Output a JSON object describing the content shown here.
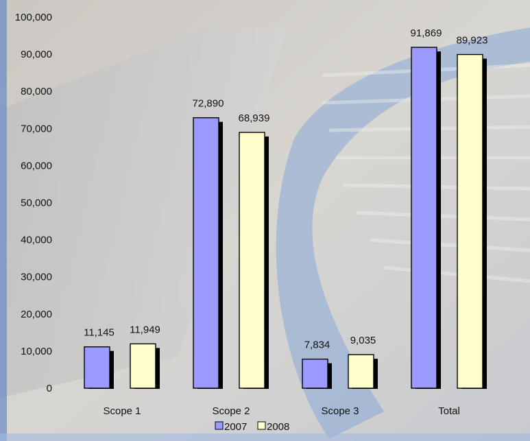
{
  "chart_data": {
    "type": "bar",
    "categories": [
      "Scope 1",
      "Scope 2",
      "Scope 3",
      "Total"
    ],
    "series": [
      {
        "name": "2007",
        "color": "#9A9AFF",
        "values": [
          11145,
          72890,
          7834,
          91869
        ],
        "labels": [
          "11,145",
          "72,890",
          "7,834",
          "91,869"
        ]
      },
      {
        "name": "2008",
        "color": "#FFFFCC",
        "values": [
          11949,
          68939,
          9035,
          89923
        ],
        "labels": [
          "11,949",
          "68,939",
          "9,035",
          "89,923"
        ]
      }
    ],
    "ylim": [
      0,
      100000
    ],
    "yticks": [
      0,
      10000,
      20000,
      30000,
      40000,
      50000,
      60000,
      70000,
      80000,
      90000,
      100000
    ],
    "ytick_labels": [
      "0",
      "10,000",
      "20,000",
      "30,000",
      "40,000",
      "50,000",
      "60,000",
      "70,000",
      "80,000",
      "90,000",
      "100,000"
    ],
    "grid": false,
    "legend_position": "bottom"
  }
}
